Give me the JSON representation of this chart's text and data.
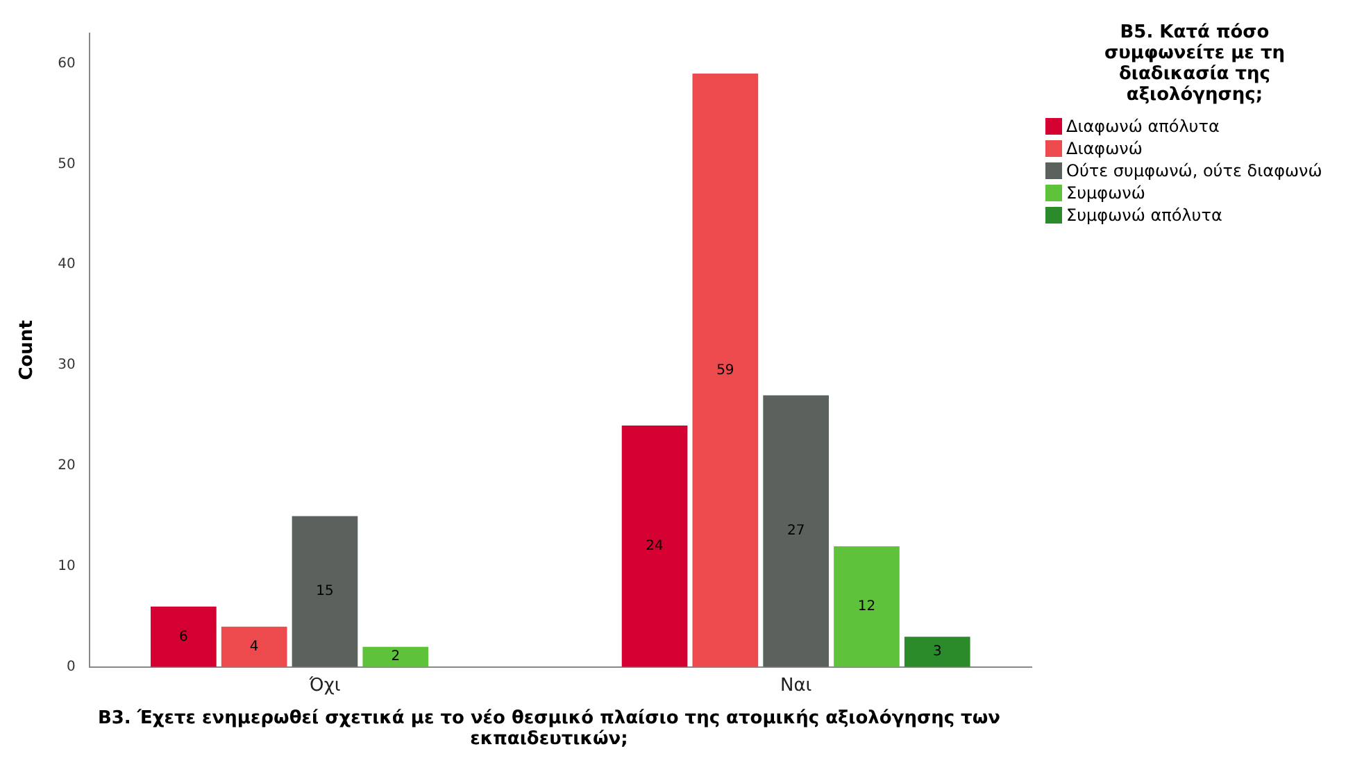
{
  "chart_data": {
    "type": "bar",
    "xlabel": "B3. Έχετε ενημερωθεί σχετικά με το νέο θεσμικό πλαίσιο της ατομικής αξιολόγησης των εκπαιδευτικών;",
    "ylabel": "Count",
    "legend_title": "B5. Κατά πόσο συμφωνείτε με τη διαδικασία της αξιολόγησης;",
    "categories": [
      "Όχι",
      "Ναι"
    ],
    "series": [
      {
        "name": "Διαφωνώ απόλυτα",
        "color": "#d50032",
        "values": [
          6,
          24
        ]
      },
      {
        "name": "Διαφωνώ",
        "color": "#ec4a4c",
        "values": [
          4,
          59
        ]
      },
      {
        "name": "Ούτε συμφωνώ, ούτε διαφωνώ",
        "color": "#5b625d",
        "values": [
          15,
          27
        ]
      },
      {
        "name": "Συμφωνώ",
        "color": "#5ec23b",
        "values": [
          2,
          12
        ]
      },
      {
        "name": "Συμφωνώ απόλυτα",
        "color": "#2b8a2a",
        "values": [
          null,
          3
        ]
      }
    ],
    "ylim": [
      0,
      63
    ],
    "yticks": [
      0,
      10,
      20,
      30,
      40,
      50,
      60
    ],
    "data_labels": true,
    "legend": "top right"
  }
}
